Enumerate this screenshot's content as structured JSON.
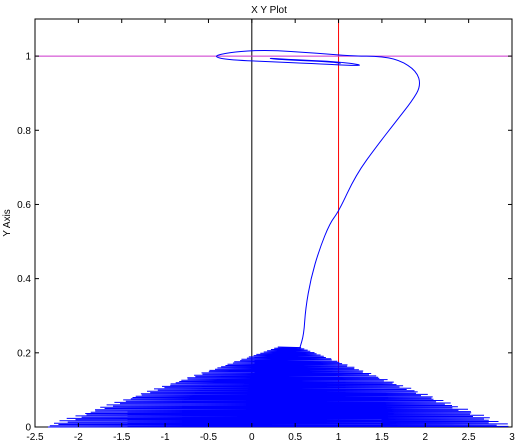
{
  "chart_data": {
    "type": "line",
    "title": "X Y Plot",
    "xlabel": "",
    "ylabel": "Y Axis",
    "xlim": [
      -2.5,
      3
    ],
    "ylim": [
      0,
      1.1
    ],
    "x_ticks": [
      "-2.5",
      "-2",
      "-1.5",
      "-1",
      "-0.5",
      "0",
      "0.5",
      "1",
      "1.5",
      "2",
      "2.5",
      "3"
    ],
    "x_tick_values": [
      -2.5,
      -2,
      -1.5,
      -1,
      -0.5,
      0,
      0.5,
      1,
      1.5,
      2,
      2.5,
      3
    ],
    "y_ticks": [
      "0",
      "0.2",
      "0.4",
      "0.6",
      "0.8",
      "1"
    ],
    "y_tick_values": [
      0,
      0.2,
      0.4,
      0.6,
      0.8,
      1
    ],
    "grid": false,
    "reference_lines": [
      {
        "orientation": "vertical",
        "value": 0,
        "color": "#000000"
      },
      {
        "orientation": "vertical",
        "value": 1,
        "color": "#ff0000"
      },
      {
        "orientation": "horizontal",
        "value": 1,
        "color": "#cc33cc"
      }
    ],
    "series": [
      {
        "color": "#0000ff",
        "description_points": {
          "oscillation_band": {
            "x_min": -2.35,
            "x_max": 2.95,
            "y_min": 0.0,
            "y_max": 0.22
          },
          "trajectory": [
            [
              0.55,
              0.21
            ],
            [
              0.6,
              0.25
            ],
            [
              0.62,
              0.32
            ],
            [
              0.68,
              0.4
            ],
            [
              0.78,
              0.48
            ],
            [
              0.9,
              0.55
            ],
            [
              1.0,
              0.58
            ],
            [
              1.2,
              0.68
            ],
            [
              1.45,
              0.76
            ],
            [
              1.65,
              0.82
            ],
            [
              1.85,
              0.88
            ],
            [
              1.95,
              0.92
            ],
            [
              1.9,
              0.96
            ],
            [
              1.7,
              0.99
            ],
            [
              1.45,
              1.0
            ],
            [
              1.2,
              1.0
            ],
            [
              0.9,
              1.005
            ],
            [
              0.6,
              1.01
            ],
            [
              0.3,
              1.015
            ],
            [
              0.0,
              1.015
            ],
            [
              -0.25,
              1.01
            ],
            [
              -0.45,
              1.0
            ],
            [
              -0.3,
              0.99
            ],
            [
              0.2,
              0.985
            ],
            [
              0.7,
              0.98
            ],
            [
              1.1,
              0.975
            ],
            [
              1.3,
              0.975
            ],
            [
              1.0,
              0.985
            ],
            [
              0.5,
              0.99
            ],
            [
              0.15,
              0.995
            ],
            [
              0.35,
              0.99
            ],
            [
              0.9,
              0.985
            ],
            [
              1.05,
              0.98
            ],
            [
              0.95,
              0.983
            ]
          ]
        }
      }
    ],
    "colors": {
      "background": "#ffffff",
      "axis_box": "#000000",
      "curve": "#0000ff",
      "zero_line": "#000000",
      "x_one_line": "#ff0000",
      "y_one_line": "#cc33cc"
    }
  }
}
